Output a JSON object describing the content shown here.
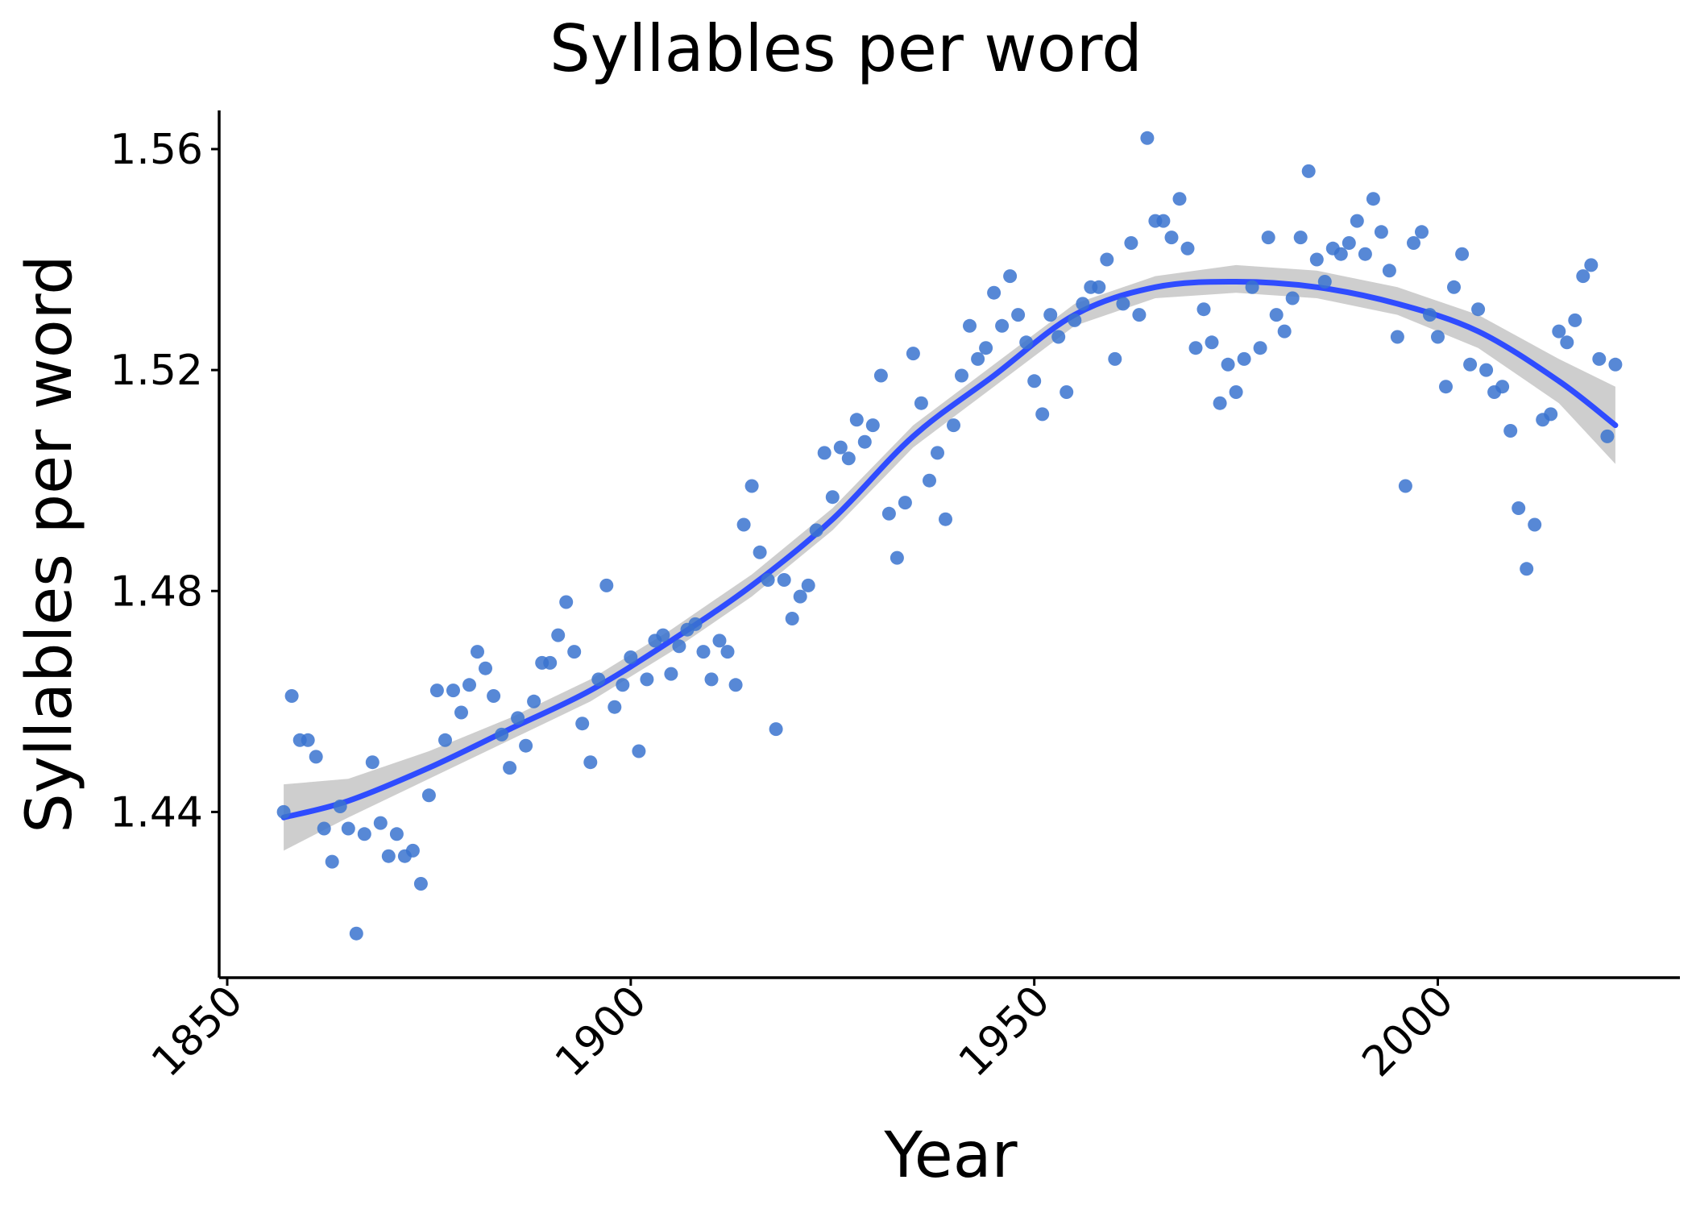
{
  "chart_data": {
    "type": "scatter",
    "title": "Syllables per word",
    "xlabel": "Year",
    "ylabel": "Syllables per word",
    "xlim": [
      1849,
      2030
    ],
    "ylim": [
      1.41,
      1.567
    ],
    "x_ticks": [
      1850,
      1900,
      1950,
      2000
    ],
    "y_ticks": [
      1.44,
      1.48,
      1.52,
      1.56
    ],
    "x_tick_labels": [
      "1850",
      "1900",
      "1950",
      "2000"
    ],
    "y_tick_labels": [
      "1.44",
      "1.48",
      "1.52",
      "1.56"
    ],
    "x_tick_rotation": -45,
    "grid": false,
    "legend": "none",
    "colors": {
      "points": "#3a73cf",
      "trend": "#2f4cff",
      "band": "#bdbdbd"
    },
    "points": [
      [
        1857,
        1.44
      ],
      [
        1858,
        1.461
      ],
      [
        1859,
        1.453
      ],
      [
        1860,
        1.453
      ],
      [
        1861,
        1.45
      ],
      [
        1862,
        1.437
      ],
      [
        1863,
        1.431
      ],
      [
        1864,
        1.441
      ],
      [
        1865,
        1.437
      ],
      [
        1866,
        1.418
      ],
      [
        1867,
        1.436
      ],
      [
        1868,
        1.449
      ],
      [
        1869,
        1.438
      ],
      [
        1870,
        1.432
      ],
      [
        1871,
        1.436
      ],
      [
        1872,
        1.432
      ],
      [
        1873,
        1.433
      ],
      [
        1874,
        1.427
      ],
      [
        1875,
        1.443
      ],
      [
        1876,
        1.462
      ],
      [
        1877,
        1.453
      ],
      [
        1878,
        1.462
      ],
      [
        1879,
        1.458
      ],
      [
        1880,
        1.463
      ],
      [
        1881,
        1.469
      ],
      [
        1882,
        1.466
      ],
      [
        1883,
        1.461
      ],
      [
        1884,
        1.454
      ],
      [
        1885,
        1.448
      ],
      [
        1886,
        1.457
      ],
      [
        1887,
        1.452
      ],
      [
        1888,
        1.46
      ],
      [
        1889,
        1.467
      ],
      [
        1890,
        1.467
      ],
      [
        1891,
        1.472
      ],
      [
        1892,
        1.478
      ],
      [
        1893,
        1.469
      ],
      [
        1894,
        1.456
      ],
      [
        1895,
        1.449
      ],
      [
        1896,
        1.464
      ],
      [
        1897,
        1.481
      ],
      [
        1898,
        1.459
      ],
      [
        1899,
        1.463
      ],
      [
        1900,
        1.468
      ],
      [
        1901,
        1.451
      ],
      [
        1902,
        1.464
      ],
      [
        1903,
        1.471
      ],
      [
        1904,
        1.472
      ],
      [
        1905,
        1.465
      ],
      [
        1906,
        1.47
      ],
      [
        1907,
        1.473
      ],
      [
        1908,
        1.474
      ],
      [
        1909,
        1.469
      ],
      [
        1910,
        1.464
      ],
      [
        1911,
        1.471
      ],
      [
        1912,
        1.469
      ],
      [
        1913,
        1.463
      ],
      [
        1914,
        1.492
      ],
      [
        1915,
        1.499
      ],
      [
        1916,
        1.487
      ],
      [
        1917,
        1.482
      ],
      [
        1918,
        1.455
      ],
      [
        1919,
        1.482
      ],
      [
        1920,
        1.475
      ],
      [
        1921,
        1.479
      ],
      [
        1922,
        1.481
      ],
      [
        1923,
        1.491
      ],
      [
        1924,
        1.505
      ],
      [
        1925,
        1.497
      ],
      [
        1926,
        1.506
      ],
      [
        1927,
        1.504
      ],
      [
        1928,
        1.511
      ],
      [
        1929,
        1.507
      ],
      [
        1930,
        1.51
      ],
      [
        1931,
        1.519
      ],
      [
        1932,
        1.494
      ],
      [
        1933,
        1.486
      ],
      [
        1934,
        1.496
      ],
      [
        1935,
        1.523
      ],
      [
        1936,
        1.514
      ],
      [
        1937,
        1.5
      ],
      [
        1938,
        1.505
      ],
      [
        1939,
        1.493
      ],
      [
        1940,
        1.51
      ],
      [
        1941,
        1.519
      ],
      [
        1942,
        1.528
      ],
      [
        1943,
        1.522
      ],
      [
        1944,
        1.524
      ],
      [
        1945,
        1.534
      ],
      [
        1946,
        1.528
      ],
      [
        1947,
        1.537
      ],
      [
        1948,
        1.53
      ],
      [
        1949,
        1.525
      ],
      [
        1950,
        1.518
      ],
      [
        1951,
        1.512
      ],
      [
        1952,
        1.53
      ],
      [
        1953,
        1.526
      ],
      [
        1954,
        1.516
      ],
      [
        1955,
        1.529
      ],
      [
        1956,
        1.532
      ],
      [
        1957,
        1.535
      ],
      [
        1958,
        1.535
      ],
      [
        1959,
        1.54
      ],
      [
        1960,
        1.522
      ],
      [
        1961,
        1.532
      ],
      [
        1962,
        1.543
      ],
      [
        1963,
        1.53
      ],
      [
        1964,
        1.562
      ],
      [
        1965,
        1.547
      ],
      [
        1966,
        1.547
      ],
      [
        1967,
        1.544
      ],
      [
        1968,
        1.551
      ],
      [
        1969,
        1.542
      ],
      [
        1970,
        1.524
      ],
      [
        1971,
        1.531
      ],
      [
        1972,
        1.525
      ],
      [
        1973,
        1.514
      ],
      [
        1974,
        1.521
      ],
      [
        1975,
        1.516
      ],
      [
        1976,
        1.522
      ],
      [
        1977,
        1.535
      ],
      [
        1978,
        1.524
      ],
      [
        1979,
        1.544
      ],
      [
        1980,
        1.53
      ],
      [
        1981,
        1.527
      ],
      [
        1982,
        1.533
      ],
      [
        1983,
        1.544
      ],
      [
        1984,
        1.556
      ],
      [
        1985,
        1.54
      ],
      [
        1986,
        1.536
      ],
      [
        1987,
        1.542
      ],
      [
        1988,
        1.541
      ],
      [
        1989,
        1.543
      ],
      [
        1990,
        1.547
      ],
      [
        1991,
        1.541
      ],
      [
        1992,
        1.551
      ],
      [
        1993,
        1.545
      ],
      [
        1994,
        1.538
      ],
      [
        1995,
        1.526
      ],
      [
        1996,
        1.499
      ],
      [
        1997,
        1.543
      ],
      [
        1998,
        1.545
      ],
      [
        1999,
        1.53
      ],
      [
        2000,
        1.526
      ],
      [
        2001,
        1.517
      ],
      [
        2002,
        1.535
      ],
      [
        2003,
        1.541
      ],
      [
        2004,
        1.521
      ],
      [
        2005,
        1.531
      ],
      [
        2006,
        1.52
      ],
      [
        2007,
        1.516
      ],
      [
        2008,
        1.517
      ],
      [
        2009,
        1.509
      ],
      [
        2010,
        1.495
      ],
      [
        2011,
        1.484
      ],
      [
        2012,
        1.492
      ],
      [
        2013,
        1.511
      ],
      [
        2014,
        1.512
      ],
      [
        2015,
        1.527
      ],
      [
        2016,
        1.525
      ],
      [
        2017,
        1.529
      ],
      [
        2018,
        1.537
      ],
      [
        2019,
        1.539
      ],
      [
        2020,
        1.522
      ],
      [
        2021,
        1.508
      ],
      [
        2022,
        1.521
      ]
    ],
    "trend": {
      "x": [
        1857,
        1865,
        1875,
        1885,
        1895,
        1905,
        1915,
        1925,
        1935,
        1945,
        1955,
        1965,
        1975,
        1985,
        1995,
        2005,
        2015,
        2022
      ],
      "y": [
        1.439,
        1.442,
        1.448,
        1.455,
        1.462,
        1.471,
        1.481,
        1.493,
        1.508,
        1.519,
        1.53,
        1.535,
        1.536,
        1.535,
        1.532,
        1.527,
        1.518,
        1.51
      ],
      "band_low": [
        1.433,
        1.439,
        1.446,
        1.453,
        1.46,
        1.469,
        1.479,
        1.491,
        1.506,
        1.517,
        1.528,
        1.533,
        1.534,
        1.533,
        1.53,
        1.524,
        1.514,
        1.503
      ],
      "band_high": [
        1.445,
        1.446,
        1.451,
        1.457,
        1.464,
        1.473,
        1.483,
        1.495,
        1.51,
        1.521,
        1.532,
        1.537,
        1.539,
        1.538,
        1.535,
        1.53,
        1.522,
        1.517
      ]
    }
  }
}
